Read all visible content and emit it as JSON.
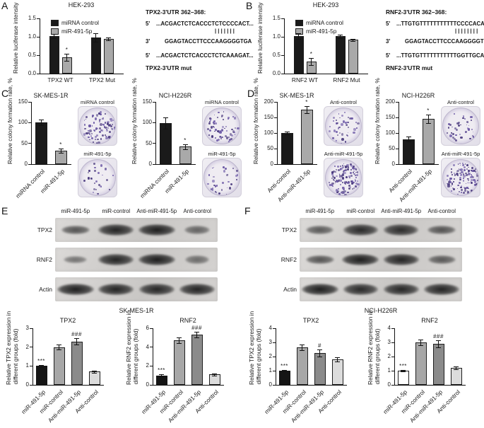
{
  "panels": {
    "A": {
      "letter": "A",
      "alignment": {
        "title": "TPX2-3'UTR 362–368:",
        "l1p": "5'",
        "l1": "...ACGACTCTCACCCTCTCCCCACT...",
        "bars": "|||||||",
        "l2p": "3'",
        "l2": "GGAGTACCTTCCCAAGGGGTGA",
        "l3p": "5'",
        "l3": "...ACGACTCTCACCCTCTCAAAGAT...",
        "footer": "TPX2-3'UTR mut"
      }
    },
    "B": {
      "letter": "B",
      "alignment": {
        "title": "RNF2-3'UTR 362–368:",
        "l1p": "5'",
        "l1": "...TTGTGTTTTTTTTTTTCCCCACA...",
        "bars": "||||||||",
        "l2p": "3'",
        "l2": "GGAGTACCTTCCCAAGGGGTGA",
        "l3p": "5'",
        "l3": "...TTGTGTTTTTTTTTTTGGTTGCA...",
        "footer": "RNF2-3'UTR mut"
      }
    },
    "C": {
      "letter": "C",
      "groups": [
        {
          "plates": [
            {
              "label": "miRNA control",
              "dots": 95,
              "seed": 7
            },
            {
              "label": "miR-491-5p",
              "dots": 28,
              "seed": 13
            }
          ]
        },
        {
          "plates": [
            {
              "label": "miRNA control",
              "dots": 70,
              "seed": 21
            },
            {
              "label": "miR-491-5p",
              "dots": 32,
              "seed": 5
            }
          ]
        }
      ]
    },
    "D": {
      "letter": "D",
      "groups": [
        {
          "plates": [
            {
              "label": "Anti-control",
              "dots": 45,
              "seed": 9
            },
            {
              "label": "Anti-miR-491-5p",
              "dots": 120,
              "seed": 17
            }
          ]
        },
        {
          "plates": [
            {
              "label": "Anti-control",
              "dots": 40,
              "seed": 31
            },
            {
              "label": "Anti-miR-491-5p",
              "dots": 115,
              "seed": 3
            }
          ]
        }
      ]
    },
    "E": {
      "letter": "E",
      "blot": {
        "columns": [
          "miR-491-5p",
          "miR-control",
          "Anti-miR-491-5p",
          "Anti-control"
        ],
        "rows": [
          {
            "label": "TPX2",
            "intensities": [
              0.55,
              0.95,
              1.0,
              0.4
            ]
          },
          {
            "label": "RNF2",
            "intensities": [
              0.28,
              0.95,
              1.0,
              0.33
            ]
          },
          {
            "label": "Actin",
            "intensities": [
              1.0,
              0.95,
              0.92,
              0.95
            ]
          }
        ],
        "caption": "SK-MES-1R"
      }
    },
    "F": {
      "letter": "F",
      "blot": {
        "columns": [
          "miR-491-5p",
          "miR-control",
          "Anti-miR-491-5p",
          "Anti-control"
        ],
        "rows": [
          {
            "label": "TPX2",
            "intensities": [
              0.5,
              0.9,
              0.88,
              0.55
            ]
          },
          {
            "label": "RNF2",
            "intensities": [
              0.55,
              1.0,
              0.95,
              0.5
            ]
          },
          {
            "label": "Actin",
            "intensities": [
              1.0,
              0.9,
              0.92,
              0.95
            ]
          }
        ],
        "caption": "NCI-H226R"
      }
    }
  },
  "chart_data": [
    {
      "id": "A-luciferase-TPX2",
      "type": "bar",
      "title": "HEK-293",
      "ylabel": "Relative luciferase intensity",
      "ylim": [
        0,
        1.5
      ],
      "yticks": [
        "0.0",
        "0.5",
        "1.0",
        "1.5"
      ],
      "categories": [
        "TPX2 WT",
        "TPX2 Mut"
      ],
      "series": [
        {
          "name": "miRNA control",
          "color": "#1a1a1a",
          "values": [
            1.02,
            0.98
          ],
          "errors": [
            0.05,
            0.11
          ],
          "sigs": [
            "",
            ""
          ]
        },
        {
          "name": "miR-491-5p",
          "color": "#a9a9a9",
          "values": [
            0.44,
            0.94
          ],
          "errors": [
            0.09,
            0.04
          ],
          "sigs": [
            "*",
            ""
          ]
        }
      ]
    },
    {
      "id": "B-luciferase-RNF2",
      "type": "bar",
      "title": "HEK-293",
      "ylabel": "Relative luciferase intensity",
      "ylim": [
        0,
        1.5
      ],
      "yticks": [
        "0.0",
        "0.5",
        "1.0",
        "1.5"
      ],
      "categories": [
        "RNF2 WT",
        "RNF2 Mut"
      ],
      "series": [
        {
          "name": "miRNA control",
          "color": "#1a1a1a",
          "values": [
            1.02,
            1.01
          ],
          "errors": [
            0.08,
            0.05
          ],
          "sigs": [
            "",
            ""
          ]
        },
        {
          "name": "miR-491-5p",
          "color": "#a9a9a9",
          "values": [
            0.33,
            0.92
          ],
          "errors": [
            0.1,
            0.03
          ],
          "sigs": [
            "*",
            ""
          ]
        }
      ]
    },
    {
      "id": "C-colony-SK-MES-1R",
      "type": "bar",
      "title": "SK-MES-1R",
      "ylabel": "Relative colony formation rate, %",
      "ylim": [
        0,
        150
      ],
      "yticks": [
        "0",
        "50",
        "100",
        "150"
      ],
      "categories": [
        "miRNA control",
        "miR-491-5p"
      ],
      "values": [
        100,
        32
      ],
      "errors": [
        7,
        5
      ],
      "colors": [
        "#1a1a1a",
        "#a9a9a9"
      ],
      "sigs": [
        "",
        "*"
      ]
    },
    {
      "id": "C-colony-NCI-H226R",
      "type": "bar",
      "title": "NCI-H226R",
      "ylabel": "Relative colony formation rate, %",
      "ylim": [
        0,
        150
      ],
      "yticks": [
        "0",
        "50",
        "100",
        "150"
      ],
      "categories": [
        "miRNA control",
        "miR-491-5p"
      ],
      "values": [
        99,
        42
      ],
      "errors": [
        13,
        6
      ],
      "colors": [
        "#1a1a1a",
        "#a9a9a9"
      ],
      "sigs": [
        "",
        "*"
      ]
    },
    {
      "id": "D-colony-SK-MES-1R",
      "type": "bar",
      "title": "SK-MES-1R",
      "ylabel": "Relative colony formation rate, %",
      "ylim": [
        0,
        200
      ],
      "yticks": [
        "0",
        "50",
        "100",
        "150",
        "200"
      ],
      "categories": [
        "Anti-control",
        "Anti-miR-491-5p"
      ],
      "values": [
        100,
        175
      ],
      "errors": [
        5,
        11
      ],
      "colors": [
        "#1a1a1a",
        "#a9a9a9"
      ],
      "sigs": [
        "",
        "*"
      ]
    },
    {
      "id": "D-colony-NCI-H226R",
      "type": "bar",
      "title": "NCI-H226R",
      "ylabel": "Relative colony formation rate, %",
      "ylim": [
        0,
        200
      ],
      "yticks": [
        "0",
        "50",
        "100",
        "150",
        "200"
      ],
      "categories": [
        "Anti-control",
        "Anti-miR-491-5p"
      ],
      "values": [
        80,
        145
      ],
      "errors": [
        8,
        13
      ],
      "colors": [
        "#1a1a1a",
        "#a9a9a9"
      ],
      "sigs": [
        "",
        "*"
      ]
    },
    {
      "id": "E-TPX2-expression",
      "type": "bar",
      "title": "TPX2",
      "ylabel": [
        "Relative TPX2 expression in",
        "different groups (fold)"
      ],
      "ylim": [
        0,
        3
      ],
      "yticks": [
        "0",
        "1",
        "2",
        "3"
      ],
      "categories": [
        "miR-491-5p",
        "miR-control",
        "Anti-miR-491-5p",
        "Anti-control"
      ],
      "values": [
        1.0,
        2.0,
        2.3,
        0.7
      ],
      "errors": [
        0.06,
        0.14,
        0.18,
        0.05
      ],
      "colors": [
        "#151515",
        "#a7a7a7",
        "#8b8b8b",
        "#dcdcdc"
      ],
      "sigs": [
        "***",
        "",
        "###",
        ""
      ]
    },
    {
      "id": "E-RNF2-expression",
      "type": "bar",
      "title": "RNF2",
      "ylabel": [
        "Relative RNF2 expression in",
        "different groups (fold)"
      ],
      "ylim": [
        0,
        6
      ],
      "yticks": [
        "0",
        "2",
        "4",
        "6"
      ],
      "categories": [
        "miR-491-5p",
        "miR-control",
        "Anti-miR-491-5p",
        "Anti-control"
      ],
      "values": [
        1.0,
        4.7,
        5.3,
        1.1
      ],
      "errors": [
        0.1,
        0.3,
        0.3,
        0.1
      ],
      "colors": [
        "#151515",
        "#a7a7a7",
        "#8b8b8b",
        "#dcdcdc"
      ],
      "sigs": [
        "***",
        "",
        "###",
        ""
      ]
    },
    {
      "id": "F-TPX2-expression",
      "type": "bar",
      "title": "TPX2",
      "ylabel": [
        "Relative TPX2 expression in",
        "different groups (fold)"
      ],
      "ylim": [
        0,
        4
      ],
      "yticks": [
        "0",
        "1",
        "2",
        "3",
        "4"
      ],
      "categories": [
        "miR-491-5p",
        "miR-control",
        "Anti-miR-491-5p",
        "Anti-control"
      ],
      "values": [
        1.0,
        2.65,
        2.25,
        1.8
      ],
      "errors": [
        0.07,
        0.2,
        0.25,
        0.15
      ],
      "colors": [
        "#151515",
        "#a7a7a7",
        "#8b8b8b",
        "#dcdcdc"
      ],
      "sigs": [
        "***",
        "",
        "#",
        ""
      ]
    },
    {
      "id": "F-RNF2-expression",
      "type": "bar",
      "title": "RNF2",
      "ylabel": [
        "Relative RNF2 expression in",
        "different groups (fold)"
      ],
      "ylim": [
        0,
        4
      ],
      "yticks": [
        "0",
        "1",
        "2",
        "3",
        "4"
      ],
      "categories": [
        "miR-491-5p",
        "miR-control",
        "Anti-miR-491-5p",
        "Anti-control"
      ],
      "values": [
        1.0,
        3.0,
        2.9,
        1.2
      ],
      "errors": [
        0.07,
        0.22,
        0.25,
        0.08
      ],
      "colors": [
        "#ffffff",
        "#a7a7a7",
        "#8b8b8b",
        "#dcdcdc"
      ],
      "sigs": [
        "***",
        "",
        "###",
        ""
      ]
    }
  ]
}
